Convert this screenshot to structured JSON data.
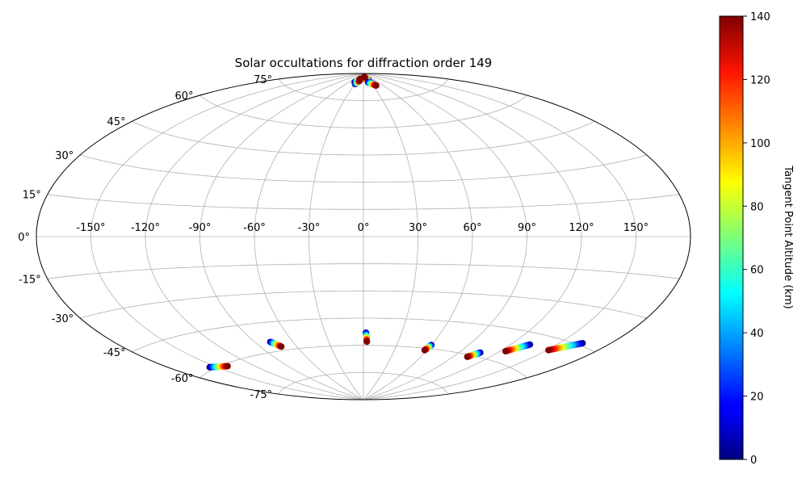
{
  "chart_data": {
    "type": "scatter",
    "projection": "aitoff",
    "title": "Solar occultations for diffraction order 149",
    "grid": true,
    "x_ticks": [
      "-150°",
      "-120°",
      "-90°",
      "-60°",
      "-30°",
      "0°",
      "30°",
      "60°",
      "90°",
      "120°",
      "150°"
    ],
    "y_ticks": [
      "-75°",
      "-60°",
      "-45°",
      "-30°",
      "-15°",
      "0°",
      "15°",
      "30°",
      "45°",
      "60°",
      "75°"
    ],
    "x_tick_values": [
      -150,
      -120,
      -90,
      -60,
      -30,
      0,
      30,
      60,
      90,
      120,
      150
    ],
    "y_tick_values": [
      -75,
      -60,
      -45,
      -30,
      -15,
      0,
      15,
      30,
      45,
      60,
      75
    ],
    "colorbar": {
      "label": "Tangent Point Altitude (km)",
      "range": [
        0,
        140
      ],
      "ticks": [
        "0",
        "20",
        "40",
        "60",
        "80",
        "100",
        "120",
        "140"
      ],
      "tick_values": [
        0,
        20,
        40,
        60,
        80,
        100,
        120,
        140
      ],
      "colormap": "jet"
    },
    "tracks": [
      {
        "lon_start": -38,
        "lat_start": 85,
        "lon_end": -22,
        "lat_end": 87
      },
      {
        "lon_start": -30,
        "lat_start": 84,
        "lon_end": -20,
        "lat_end": 86
      },
      {
        "lon_start": 35,
        "lat_start": 84,
        "lon_end": 5,
        "lat_end": 88
      },
      {
        "lon_start": 28,
        "lat_start": 86,
        "lon_end": 12,
        "lat_end": 88
      },
      {
        "lon_start": 20,
        "lat_start": 85,
        "lon_end": 40,
        "lat_end": 83
      },
      {
        "lon_start": -155,
        "lat_start": -59,
        "lon_end": -141,
        "lat_end": -61
      },
      {
        "lon_start": -78,
        "lat_start": -55,
        "lon_end": -73,
        "lat_end": -58
      },
      {
        "lon_start": 2,
        "lat_start": -53,
        "lon_end": 3,
        "lat_end": -58
      },
      {
        "lon_start": 60,
        "lat_start": -58,
        "lon_end": 58,
        "lat_end": -61
      },
      {
        "lon_start": 107,
        "lat_start": -58,
        "lon_end": 102,
        "lat_end": -61
      },
      {
        "lon_start": 133,
        "lat_start": -50,
        "lon_end": 124,
        "lat_end": -55
      },
      {
        "lon_start": 164,
        "lat_start": -44,
        "lon_end": 151,
        "lat_end": -50
      }
    ]
  }
}
